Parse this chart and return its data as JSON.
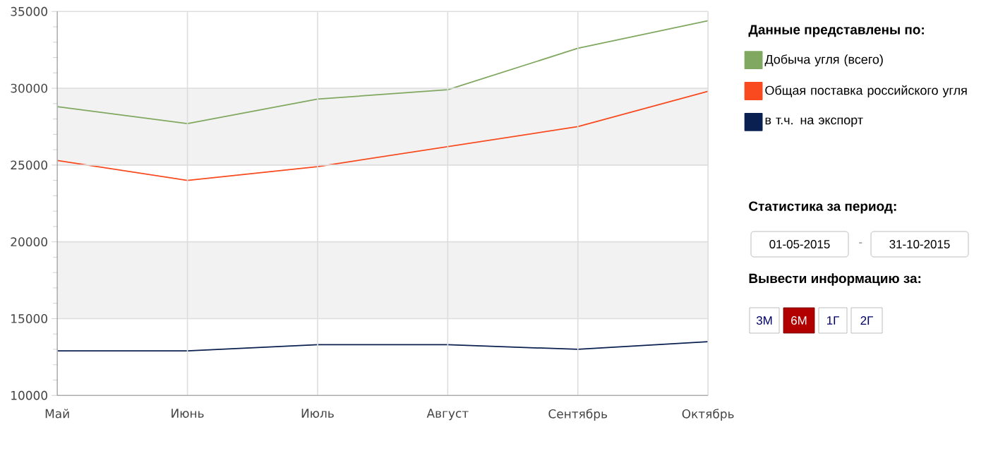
{
  "chart_data": {
    "type": "line",
    "legend_title": "Данные представлены по:",
    "categories": [
      "Май",
      "Июнь",
      "Июль",
      "Август",
      "Сентябрь",
      "Октябрь"
    ],
    "series": [
      {
        "name": "Добыча угля (всего)",
        "color": "#80a860",
        "values": [
          28800,
          27700,
          29300,
          29900,
          32600,
          34400
        ]
      },
      {
        "name": "Общая поставка российского угля",
        "color": "#f84a1e",
        "values": [
          25300,
          24000,
          24900,
          26200,
          27500,
          29800
        ]
      },
      {
        "name": "в т.ч. на экспорт",
        "color": "#0a2050",
        "values": [
          12900,
          12900,
          13300,
          13300,
          13000,
          13500
        ]
      }
    ],
    "ylim": [
      10000,
      35000
    ],
    "yticks": [
      10000,
      15000,
      20000,
      25000,
      30000,
      35000
    ],
    "grid": true,
    "legend": "right",
    "bands": [
      {
        "axis": "y",
        "from": 15000,
        "to": 20000,
        "color": "#f2f2f2"
      },
      {
        "axis": "y",
        "from": 25000,
        "to": 30000,
        "color": "#f2f2f2"
      }
    ],
    "annotations": [
      "Статистика за период:",
      "01-05-2015",
      "-",
      "31-10-2015",
      "Вывести информацию за:",
      "3М",
      "6М",
      "1Г",
      "2Г"
    ]
  }
}
